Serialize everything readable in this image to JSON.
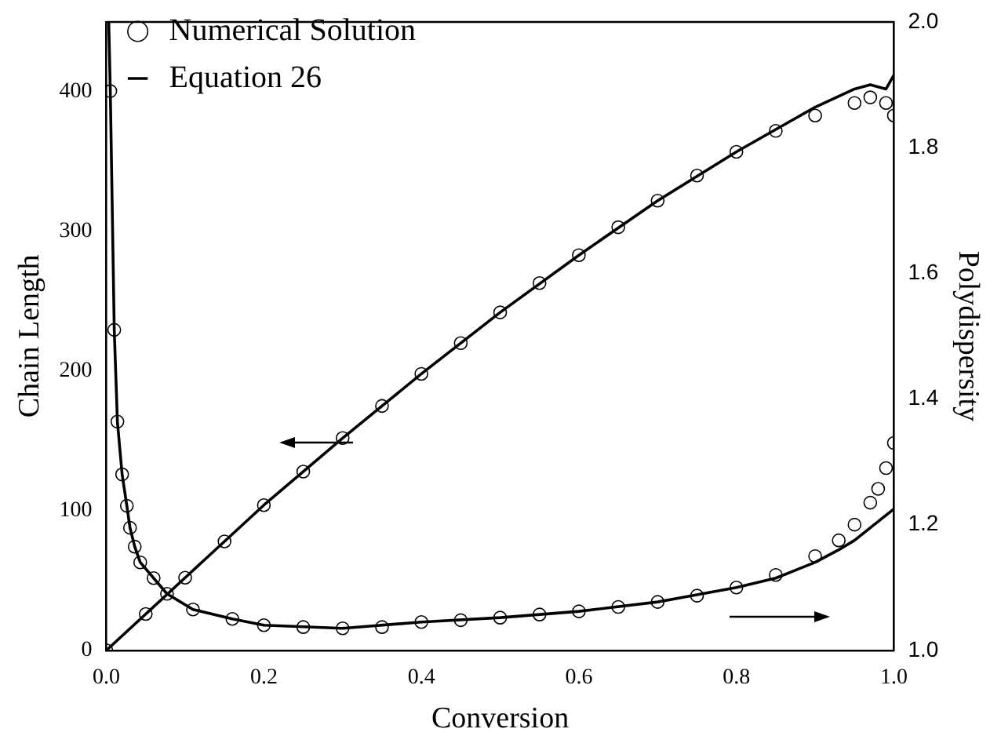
{
  "chart_data": {
    "type": "line",
    "xlabel": "Conversion",
    "ylabel": "Chain Length",
    "y2label": "Polydispersity",
    "xlim": [
      0,
      1
    ],
    "xticks": [
      {
        "value": 0,
        "label": "0.0"
      },
      0.2,
      0.4,
      0.6,
      0.8,
      {
        "value": 1,
        "label": "1.0"
      }
    ],
    "ylim": [
      0,
      450
    ],
    "yticks": [
      0,
      100,
      200,
      300,
      400
    ],
    "y2lim": [
      1,
      2
    ],
    "y2ticks": [
      {
        "value": 1,
        "label": "1.0"
      },
      1.2,
      1.4,
      1.6,
      1.8,
      {
        "value": 2,
        "label": "2.0"
      }
    ],
    "grid": false,
    "legend": "top left",
    "series": [
      {
        "name": "Numerical Solution",
        "type": "scatter",
        "marker": "circle",
        "color": "#000000",
        "x": [
          0,
          0.05,
          0.1,
          0.15,
          0.2,
          0.25,
          0.3,
          0.35,
          0.4,
          0.45,
          0.5,
          0.55,
          0.6,
          0.65,
          0.7,
          0.75,
          0.8,
          0.85,
          0.9,
          0.95,
          0.97,
          0.99,
          1.0
        ],
        "values": [
          0,
          26,
          52,
          78,
          104,
          128,
          152,
          175,
          198,
          220,
          242,
          263,
          283,
          303,
          322,
          340,
          357,
          372,
          383,
          392,
          396,
          392,
          383
        ]
      },
      {
        "name": "Equation 26",
        "marker": "none",
        "line_style": "solid",
        "color": "#000000",
        "x": [
          0,
          0.1,
          0.2,
          0.3,
          0.4,
          0.5,
          0.6,
          0.7,
          0.8,
          0.85,
          0.9,
          0.95,
          0.97,
          0.99,
          1.0
        ],
        "values": [
          0,
          52,
          104,
          152,
          198,
          242,
          283,
          322,
          357,
          373,
          389,
          402,
          405,
          402,
          412
        ]
      },
      {
        "type": "scatter",
        "marker": "circle",
        "color": "#000000",
        "axis": "y2",
        "x": [
          0.005,
          0.01,
          0.014,
          0.02,
          0.026,
          0.03,
          0.036,
          0.043,
          0.06,
          0.077,
          0.11,
          0.16,
          0.2,
          0.25,
          0.3,
          0.35,
          0.4,
          0.45,
          0.5,
          0.55,
          0.6,
          0.65,
          0.7,
          0.75,
          0.8,
          0.85,
          0.9,
          0.93,
          0.95,
          0.97,
          0.98,
          0.99,
          1.0
        ],
        "values": [
          1.89,
          1.51,
          1.364,
          1.28,
          1.23,
          1.195,
          1.165,
          1.14,
          1.115,
          1.09,
          1.065,
          1.05,
          1.04,
          1.037,
          1.035,
          1.037,
          1.045,
          1.048,
          1.052,
          1.057,
          1.062,
          1.069,
          1.077,
          1.087,
          1.1,
          1.12,
          1.15,
          1.175,
          1.2,
          1.235,
          1.257,
          1.29,
          1.33
        ]
      },
      {
        "marker": "none",
        "line_style": "solid",
        "color": "#000000",
        "axis": "y2",
        "x": [
          0.003,
          0.005,
          0.01,
          0.014,
          0.02,
          0.026,
          0.03,
          0.036,
          0.043,
          0.06,
          0.077,
          0.11,
          0.16,
          0.2,
          0.3,
          0.4,
          0.5,
          0.6,
          0.7,
          0.8,
          0.85,
          0.9,
          0.93,
          0.95,
          0.97,
          0.98,
          0.99,
          1.0
        ],
        "values": [
          2.0,
          1.89,
          1.51,
          1.364,
          1.28,
          1.23,
          1.195,
          1.165,
          1.14,
          1.115,
          1.09,
          1.065,
          1.05,
          1.04,
          1.035,
          1.045,
          1.052,
          1.062,
          1.077,
          1.1,
          1.115,
          1.14,
          1.16,
          1.175,
          1.195,
          1.205,
          1.215,
          1.225
        ]
      }
    ]
  }
}
